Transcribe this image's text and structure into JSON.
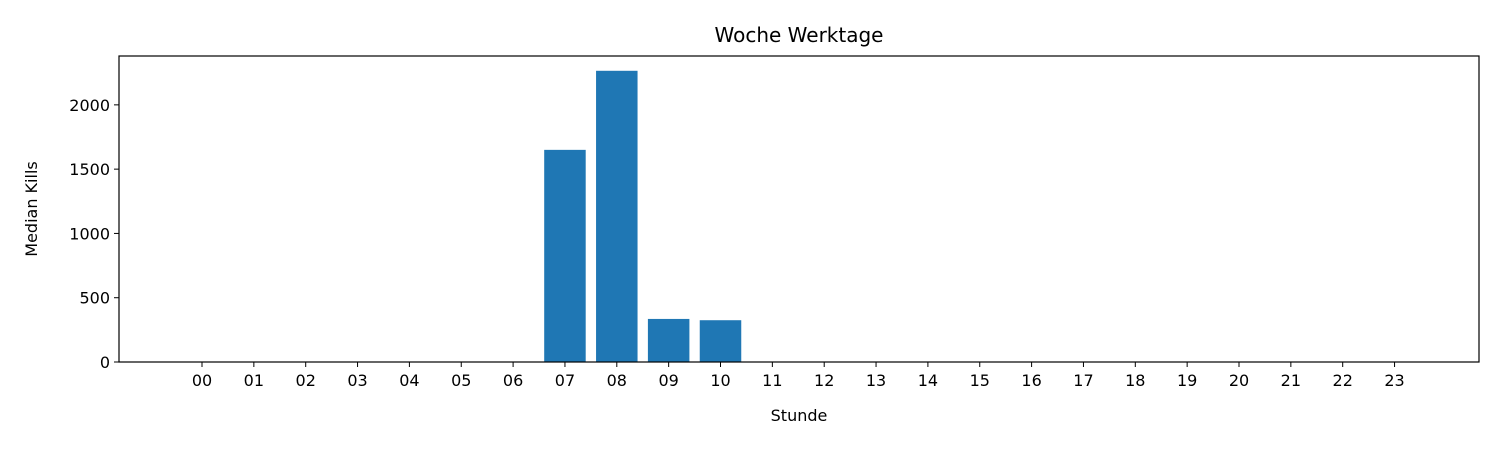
{
  "chart_data": {
    "type": "bar",
    "title": "Woche Werktage",
    "xlabel": "Stunde",
    "ylabel": "Median Kills",
    "categories": [
      "00",
      "01",
      "02",
      "03",
      "04",
      "05",
      "06",
      "07",
      "08",
      "09",
      "10",
      "11",
      "12",
      "13",
      "14",
      "15",
      "16",
      "17",
      "18",
      "19",
      "20",
      "21",
      "22",
      "23"
    ],
    "values": [
      0,
      0,
      0,
      0,
      0,
      0,
      0,
      1650,
      2265,
      335,
      325,
      0,
      0,
      0,
      0,
      0,
      0,
      0,
      0,
      0,
      0,
      0,
      0,
      0
    ],
    "yticks": [
      0,
      500,
      1000,
      1500,
      2000
    ],
    "ylim": [
      0,
      2380
    ],
    "bar_color": "#1f77b4",
    "grid": false,
    "legend": "none"
  }
}
